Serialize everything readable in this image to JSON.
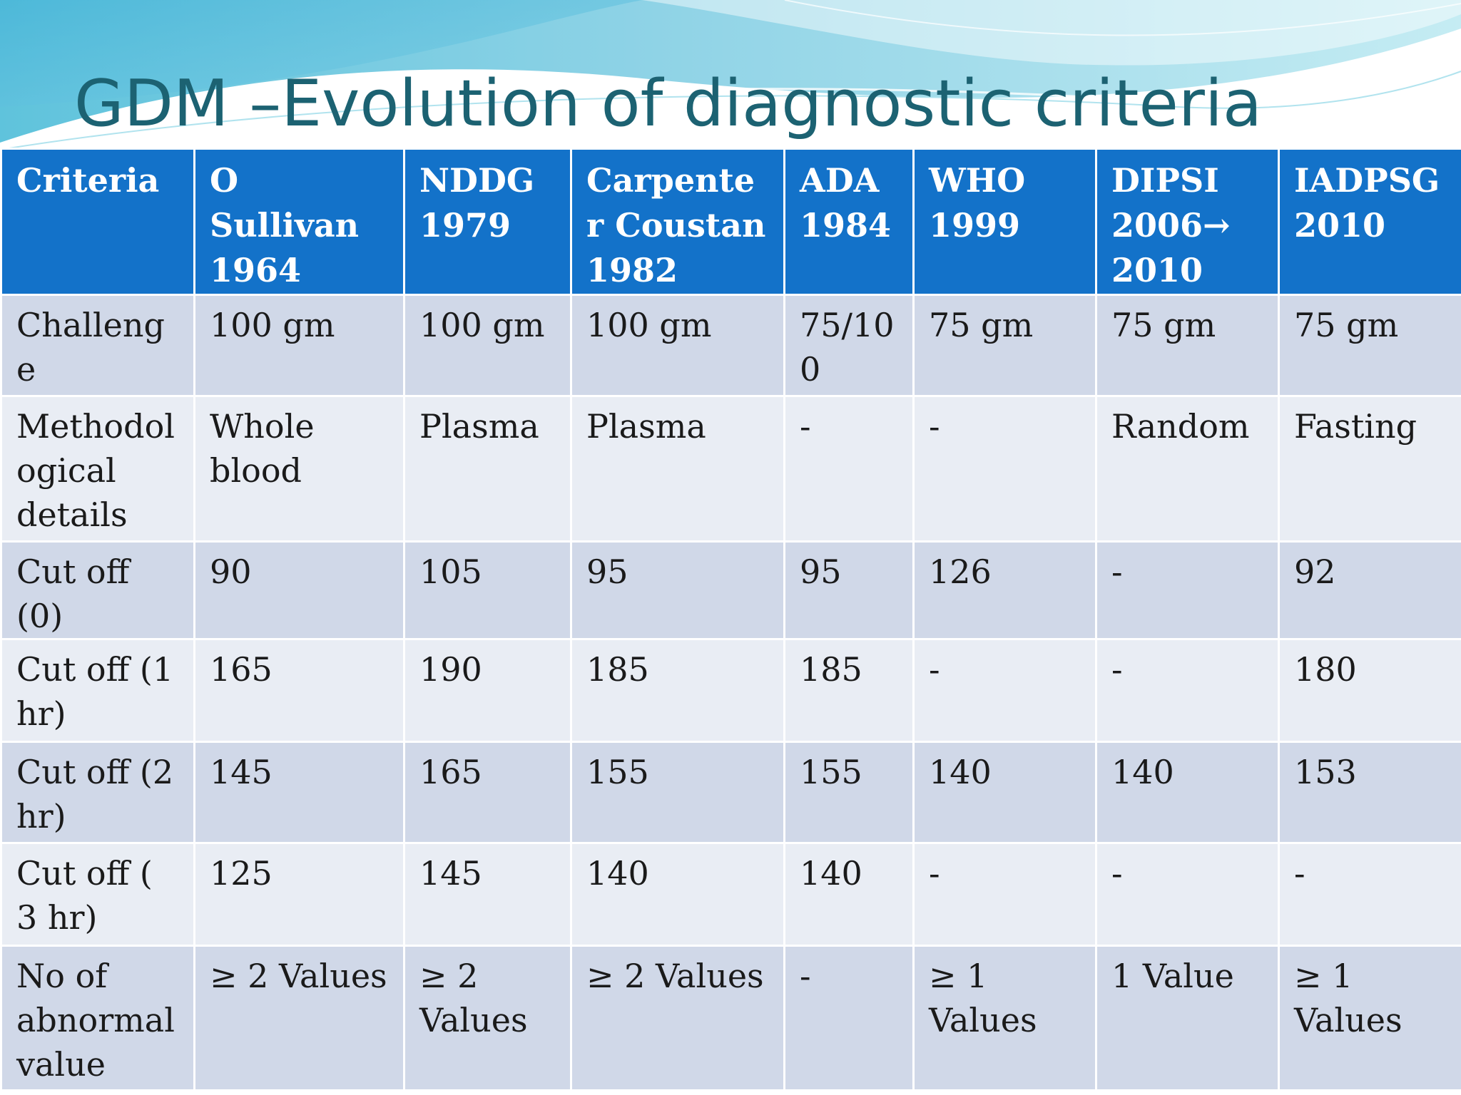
{
  "title": "GDM –Evolution of diagnostic criteria",
  "colors": {
    "header_bg": "#1372c9",
    "row_dark": "#d0d8e8",
    "row_light": "#e9edf4",
    "title": "#1c6272"
  },
  "table": {
    "headers": [
      "Criteria",
      "O Sullivan 1964",
      "NDDG 1979",
      "Carpenter Coustan 1982",
      "ADA 1984",
      "WHO 1999",
      "DIPSI 2006→ 2010",
      "IADPSG 2010"
    ],
    "rows": [
      [
        "Challenge",
        "100 gm",
        "100 gm",
        "100 gm",
        "75/100",
        "75 gm",
        "75 gm",
        "75 gm"
      ],
      [
        "Methodological details",
        "Whole blood",
        "Plasma",
        "Plasma",
        "-",
        "-",
        "Random",
        "Fasting"
      ],
      [
        "Cut off (0)",
        "90",
        "105",
        "95",
        "95",
        "126",
        "-",
        "92"
      ],
      [
        "Cut off (1 hr)",
        "165",
        "190",
        "185",
        "185",
        "-",
        "-",
        "180"
      ],
      [
        "Cut off (2 hr)",
        "145",
        "165",
        "155",
        "155",
        "140",
        "140",
        "153"
      ],
      [
        "Cut off ( 3 hr)",
        "125",
        "145",
        "140",
        "140",
        "-",
        "-",
        "-"
      ],
      [
        "No of abnormal value",
        "≥ 2 Values",
        "≥ 2 Values",
        "≥ 2 Values",
        "-",
        "≥ 1 Values",
        "1 Value",
        "≥ 1 Values"
      ]
    ]
  }
}
